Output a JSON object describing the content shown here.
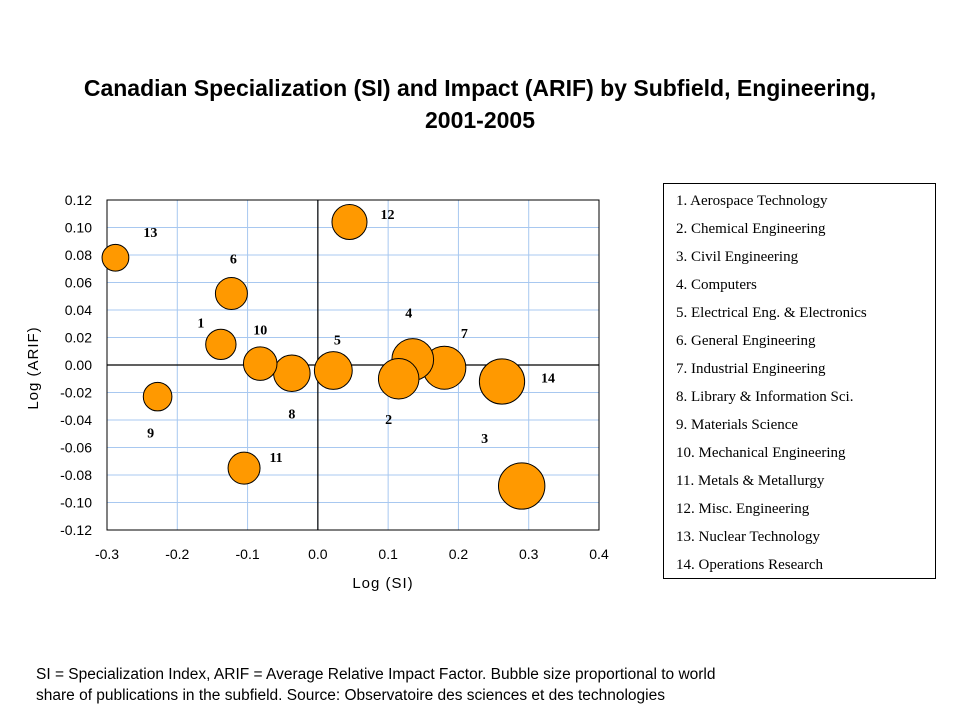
{
  "title": {
    "line1": "Canadian Specialization (SI) and Impact (ARIF) by Subfield, Engineering,",
    "line2": "2001-2005"
  },
  "footnote": {
    "line1": "SI = Specialization Index, ARIF = Average Relative Impact Factor. Bubble size proportional to world",
    "line2": "share of publications in the subfield. Source: Observatoire des sciences et des technologies"
  },
  "legend": {
    "items": [
      "1. Aerospace Technology",
      "2. Chemical Engineering",
      "3. Civil Engineering",
      "4. Computers",
      "5. Electrical Eng. & Electronics",
      "6. General Engineering",
      "7. Industrial Engineering",
      "8. Library & Information Sci.",
      "9. Materials Science",
      "10. Mechanical Engineering",
      "11. Metals & Metallurgy",
      "12. Misc. Engineering",
      "13. Nuclear Technology",
      "14. Operations Research"
    ]
  },
  "chart_data": {
    "type": "scatter",
    "subtype": "bubble",
    "xlabel": "Log (SI)",
    "ylabel": "Log (ARIF)",
    "xlim": [
      -0.3,
      0.4
    ],
    "ylim": [
      -0.12,
      0.12
    ],
    "x_ticks": [
      "-0.3",
      "-0.2",
      "-0.1",
      "0.0",
      "0.1",
      "0.2",
      "0.3",
      "0.4"
    ],
    "y_ticks": [
      "0.12",
      "0.10",
      "0.08",
      "0.06",
      "0.04",
      "0.02",
      "0.00",
      "-0.02",
      "-0.04",
      "-0.06",
      "-0.08",
      "-0.10",
      "-0.12"
    ],
    "grid": true,
    "bubble_color": "#ff9900",
    "points": [
      {
        "label": "1",
        "x": -0.138,
        "y": 0.015,
        "size": 0.9
      },
      {
        "label": "2",
        "x": 0.115,
        "y": -0.01,
        "size": 1.6
      },
      {
        "label": "3",
        "x": 0.29,
        "y": -0.088,
        "size": 2.1
      },
      {
        "label": "4",
        "x": 0.135,
        "y": 0.004,
        "size": 1.7
      },
      {
        "label": "5",
        "x": 0.022,
        "y": -0.004,
        "size": 1.4
      },
      {
        "label": "6",
        "x": -0.123,
        "y": 0.052,
        "size": 1.0
      },
      {
        "label": "7",
        "x": 0.18,
        "y": -0.002,
        "size": 1.8
      },
      {
        "label": "8",
        "x": -0.037,
        "y": -0.006,
        "size": 1.3
      },
      {
        "label": "9",
        "x": -0.228,
        "y": -0.023,
        "size": 0.8
      },
      {
        "label": "10",
        "x": -0.082,
        "y": 0.001,
        "size": 1.1
      },
      {
        "label": "11",
        "x": -0.105,
        "y": -0.075,
        "size": 1.0
      },
      {
        "label": "12",
        "x": 0.045,
        "y": 0.104,
        "size": 1.2
      },
      {
        "label": "13",
        "x": -0.288,
        "y": 0.078,
        "size": 0.7
      },
      {
        "label": "14",
        "x": 0.262,
        "y": -0.012,
        "size": 2.0
      }
    ]
  }
}
